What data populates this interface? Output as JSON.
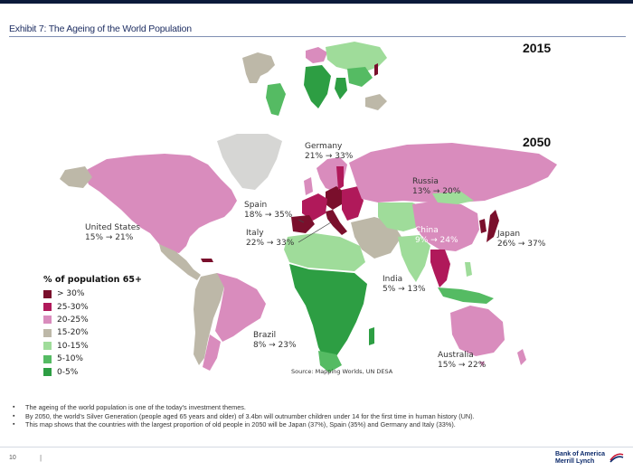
{
  "header": {
    "exhibit_title": "Exhibit 7: The Ageing of the World Population"
  },
  "map": {
    "year_2015": "2015",
    "year_2050": "2050",
    "source": "Source: Mapping Worlds, UN DESA",
    "countries": [
      {
        "id": "united-states",
        "name": "United States",
        "change": "15% → 21%"
      },
      {
        "id": "spain",
        "name": "Spain",
        "change": "18% → 35%"
      },
      {
        "id": "italy",
        "name": "Italy",
        "change": "22% → 33%"
      },
      {
        "id": "germany",
        "name": "Germany",
        "change": "21% → 33%"
      },
      {
        "id": "russia",
        "name": "Russia",
        "change": "13% → 20%"
      },
      {
        "id": "china",
        "name": "China",
        "change": "9% → 24%"
      },
      {
        "id": "japan",
        "name": "Japan",
        "change": "26% → 37%"
      },
      {
        "id": "india",
        "name": "India",
        "change": "5% → 13%"
      },
      {
        "id": "brazil",
        "name": "Brazil",
        "change": "8% → 23%"
      },
      {
        "id": "australia",
        "name": "Australia",
        "change": "15% → 22%"
      }
    ],
    "legend": {
      "title": "% of population 65+",
      "items": [
        {
          "label": "> 30%",
          "color": "#7a0f2c"
        },
        {
          "label": "25-30%",
          "color": "#b0195a"
        },
        {
          "label": "20-25%",
          "color": "#d98cbd"
        },
        {
          "label": "15-20%",
          "color": "#bdb8a8"
        },
        {
          "label": "10-15%",
          "color": "#9fdc9a"
        },
        {
          "label": "5-10%",
          "color": "#55bb63"
        },
        {
          "label": "0-5%",
          "color": "#2d9e43"
        }
      ]
    },
    "colors": {
      "over30": "#7a0f2c",
      "25to30": "#b0195a",
      "20to25": "#d98cbd",
      "15to20": "#bdb8a8",
      "10to15": "#9fdc9a",
      "5to10": "#55bb63",
      "0to5": "#2d9e43",
      "greenland": "#d6d6d4"
    }
  },
  "bullets": [
    "The ageing of the world population is one of the today's investment themes.",
    "By 2050, the world's Silver Generation (people aged 65 years and older) of 3.4bn will outnumber children under 14 for the first time in human history (UN).",
    "This map shows that the countries with the largest proportion of old people in 2050 will be Japan (37%), Spain (35%) and Germany and Italy (33%)."
  ],
  "footer": {
    "page_number": "10",
    "separator": "|",
    "logo_line1": "Bank of America",
    "logo_line2": "Merrill Lynch"
  }
}
